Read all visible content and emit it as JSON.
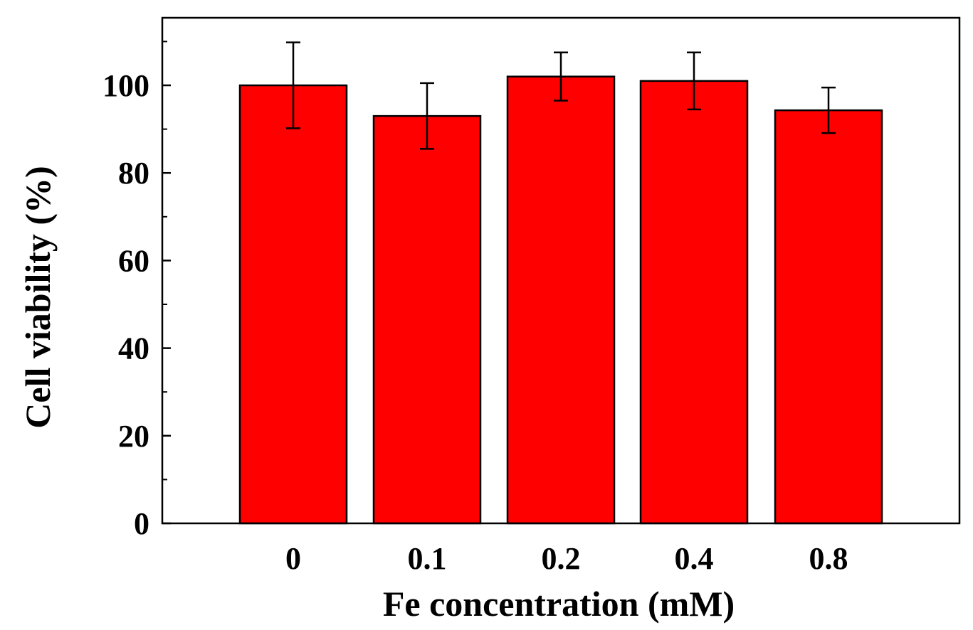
{
  "chart_data": {
    "type": "bar",
    "categories": [
      "0",
      "0.1",
      "0.2",
      "0.4",
      "0.8"
    ],
    "values": [
      100,
      93,
      102,
      101,
      94.3
    ],
    "errors": [
      9.8,
      7.5,
      5.5,
      6.5,
      5.2
    ],
    "xlabel": "Fe concentration (mM)",
    "ylabel": "Cell viability (%)",
    "ylim": [
      0,
      115
    ],
    "yticks": [
      0,
      20,
      40,
      60,
      80,
      100
    ],
    "yticks_minor": [
      10,
      30,
      50,
      70,
      90,
      110
    ],
    "bar_color": "#ff0000",
    "edge_color": "#000000",
    "grid": false,
    "legend": "none"
  }
}
